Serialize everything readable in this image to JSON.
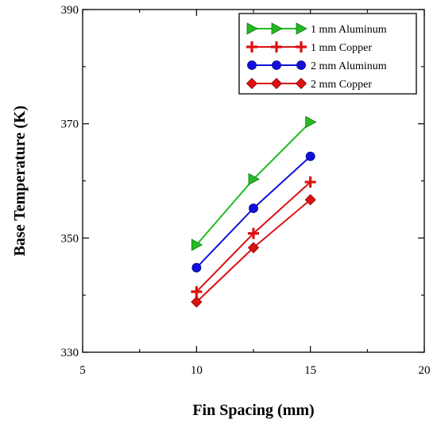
{
  "chart_data": {
    "type": "line",
    "title": "",
    "xlabel": "Fin Spacing (mm)",
    "ylabel": "Base Temperature (K)",
    "xlim": [
      5,
      20
    ],
    "ylim": [
      330,
      390
    ],
    "xticks": [
      5,
      10,
      15,
      20
    ],
    "yticks": [
      330,
      350,
      370,
      390
    ],
    "x_minor_ticks": [
      7.5,
      12.5,
      17.5
    ],
    "y_minor_ticks": [
      340,
      360,
      380
    ],
    "grid": false,
    "legend_position": "top-right",
    "x": [
      10,
      12.5,
      15
    ],
    "series": [
      {
        "name": "1 mm Aluminum",
        "values": [
          348.8,
          360.3,
          370.3
        ],
        "color": "#22bb22",
        "marker": "triangle-right"
      },
      {
        "name": "1 mm Copper",
        "values": [
          340.6,
          350.8,
          359.8
        ],
        "color": "#dd1111",
        "marker": "plus"
      },
      {
        "name": "2 mm Aluminum",
        "values": [
          344.8,
          355.2,
          364.3
        ],
        "color": "#1111dd",
        "marker": "circle"
      },
      {
        "name": "2 mm Copper",
        "values": [
          338.8,
          348.3,
          356.7
        ],
        "color": "#dd1111",
        "marker": "diamond"
      }
    ]
  }
}
